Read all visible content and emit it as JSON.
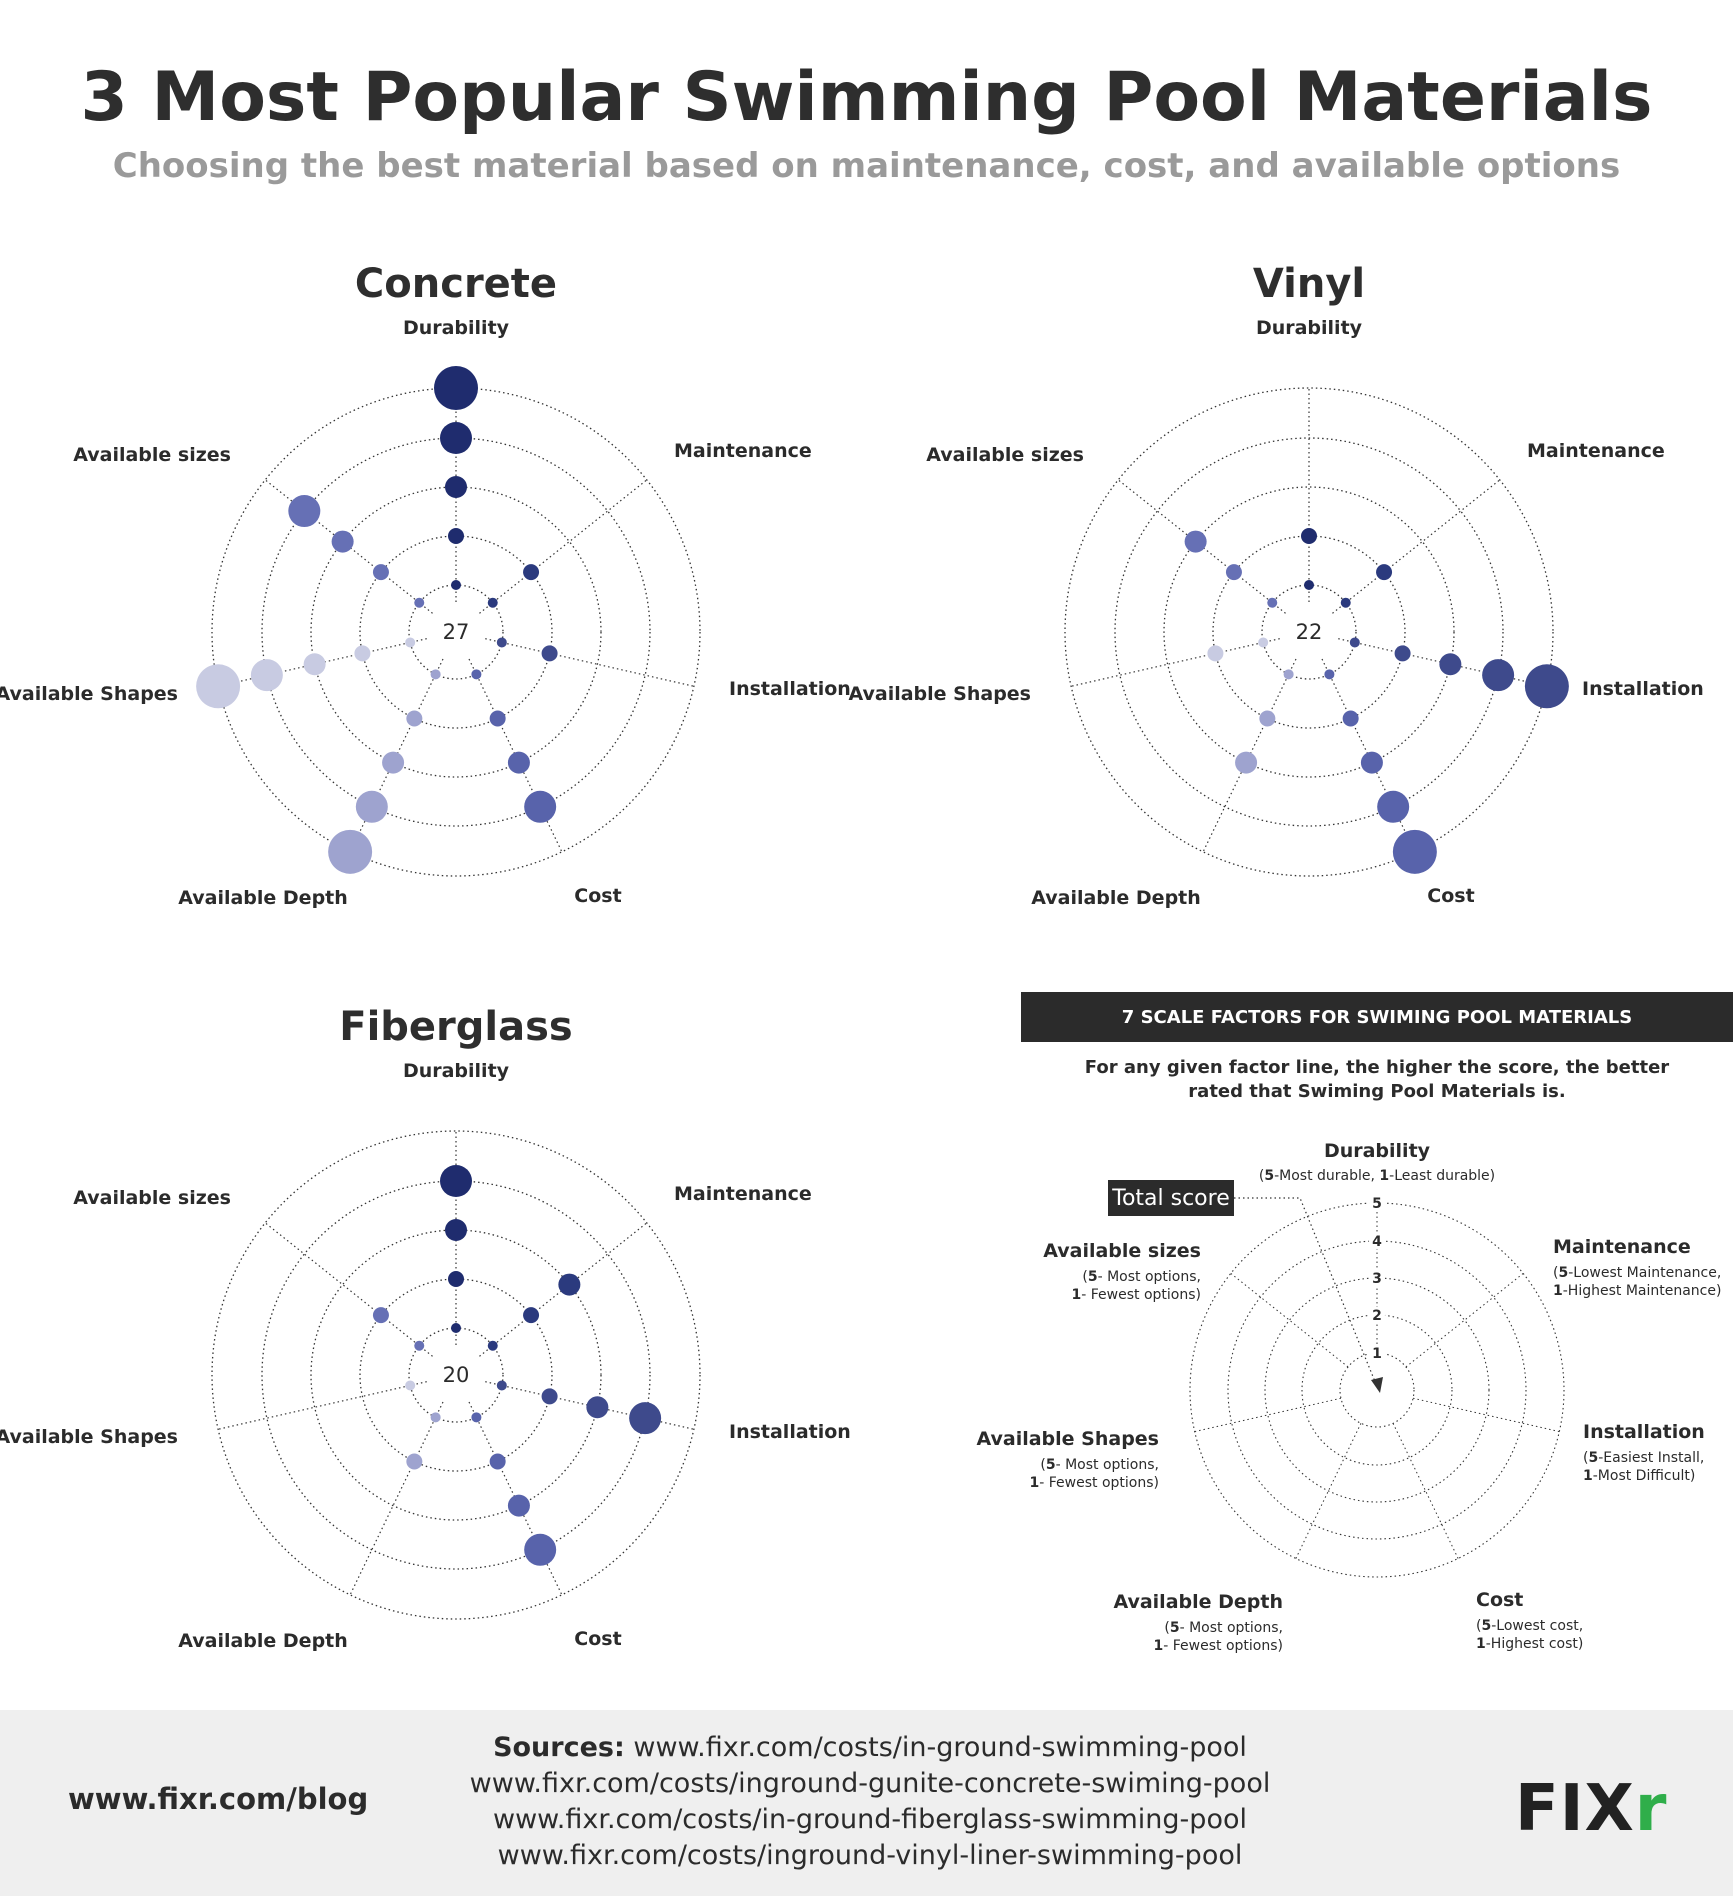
{
  "header": {
    "title": "3 Most Popular Swimming Pool Materials",
    "subtitle": "Choosing the best material based on maintenance, cost, and available options"
  },
  "axes": [
    "Durability",
    "Maintenance",
    "Installation",
    "Cost",
    "Available Depth",
    "Available Shapes",
    "Available sizes"
  ],
  "colors": {
    "Durability": "#1f2c6e",
    "Maintenance": "#2b3a7e",
    "Installation": "#3e4a8c",
    "Cost": "#5863ab",
    "Available Depth": "#9ea3cf",
    "Available Shapes": "#c8cbe2",
    "Available sizes": "#6670b5"
  },
  "chart_data": [
    {
      "type": "radar-bubble",
      "title": "Concrete",
      "total": "27",
      "categories": [
        "Durability",
        "Maintenance",
        "Installation",
        "Cost",
        "Available Depth",
        "Available Shapes",
        "Available sizes"
      ],
      "values": [
        5,
        2,
        2,
        4,
        5,
        5,
        4
      ],
      "range": [
        1,
        5
      ]
    },
    {
      "type": "radar-bubble",
      "title": "Vinyl",
      "total": "22",
      "categories": [
        "Durability",
        "Maintenance",
        "Installation",
        "Cost",
        "Available Depth",
        "Available Shapes",
        "Available sizes"
      ],
      "values": [
        2,
        2,
        5,
        5,
        3,
        2,
        3
      ],
      "range": [
        1,
        5
      ]
    },
    {
      "type": "radar-bubble",
      "title": "Fiberglass",
      "total": "20",
      "categories": [
        "Durability",
        "Maintenance",
        "Installation",
        "Cost",
        "Available Depth",
        "Available Shapes",
        "Available sizes"
      ],
      "values": [
        4,
        3,
        4,
        4,
        2,
        1,
        2
      ],
      "range": [
        1,
        5
      ]
    }
  ],
  "legend": {
    "banner": "7 SCALE FACTORS FOR SWIMING POOL MATERIALS",
    "intro_line1": "For any given factor line, the higher the score, the better",
    "intro_line2": "rated that Swiming Pool Materials is.",
    "total_score_label": "Total score",
    "scale_numbers": [
      "1",
      "2",
      "3",
      "4",
      "5"
    ],
    "factors": [
      {
        "name": "Durability",
        "best": "5",
        "best_text": "-Most durable,",
        "worst": "1",
        "worst_text": "-Least durable)"
      },
      {
        "name": "Maintenance",
        "best": "5",
        "best_text": "-Lowest Maintenance,",
        "worst": "1",
        "worst_text": "-Highest Maintenance)"
      },
      {
        "name": "Installation",
        "best": "5",
        "best_text": "-Easiest Install,",
        "worst": "1",
        "worst_text": "-Most Difficult)"
      },
      {
        "name": "Cost",
        "best": "5",
        "best_text": "-Lowest cost,",
        "worst": "1",
        "worst_text": "-Highest cost)"
      },
      {
        "name": "Available Depth",
        "best": "5",
        "best_text": "- Most options,",
        "worst": "1",
        "worst_text": "- Fewest options)"
      },
      {
        "name": "Available Shapes",
        "best": "5",
        "best_text": "- Most options,",
        "worst": "1",
        "worst_text": "- Fewest options)"
      },
      {
        "name": "Available sizes",
        "best": "5",
        "best_text": "- Most options,",
        "worst": "1",
        "worst_text": "- Fewest options)"
      }
    ]
  },
  "footer": {
    "blog": "www.fixr.com/blog",
    "sources_label": "Sources:",
    "sources": [
      "www.fixr.com/costs/in-ground-swimming-pool",
      "www.fixr.com/costs/inground-gunite-concrete-swiming-pool",
      "www.fixr.com/costs/in-ground-fiberglass-swimming-pool",
      "www.fixr.com/costs/inground-vinyl-liner-swimming-pool"
    ],
    "logo_main": "FIX",
    "logo_accent": "r"
  }
}
